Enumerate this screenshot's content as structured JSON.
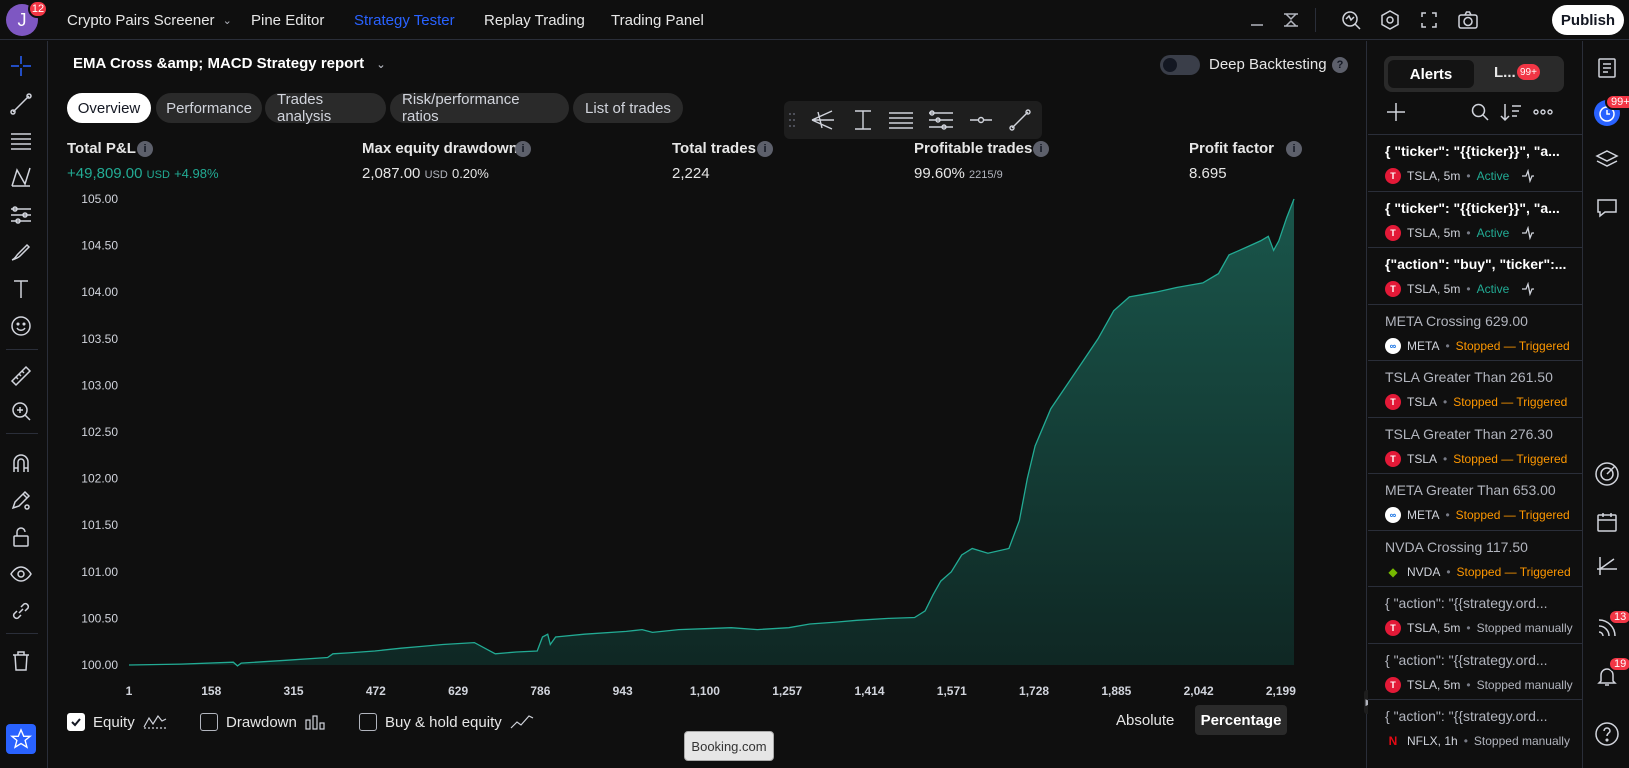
{
  "user": {
    "initial": "J",
    "notifications": "12"
  },
  "topnav": {
    "screener": "Crypto Pairs Screener",
    "pine_editor": "Pine Editor",
    "strategy_tester": "Strategy Tester",
    "replay_trading": "Replay Trading",
    "trading_panel": "Trading Panel",
    "publish": "Publish"
  },
  "report": {
    "title": "EMA Cross &amp; MACD Strategy report",
    "deep_backtesting": "Deep Backtesting",
    "deep_backtesting_enabled": false,
    "help": "?"
  },
  "tabs": [
    {
      "label": "Overview",
      "active": true
    },
    {
      "label": "Performance",
      "active": false
    },
    {
      "label": "Trades analysis",
      "active": false
    },
    {
      "label": "Risk/performance ratios",
      "active": false
    },
    {
      "label": "List of trades",
      "active": false
    }
  ],
  "metrics": {
    "total_pnl": {
      "label": "Total P&L",
      "value": "+49,809.00",
      "unit": "USD",
      "pct": "+4.98%"
    },
    "max_dd": {
      "label": "Max equity drawdown",
      "value": "2,087.00",
      "unit": "USD",
      "pct": "0.20%"
    },
    "total_trades": {
      "label": "Total trades",
      "value": "2,224"
    },
    "profitable": {
      "label": "Profitable trades",
      "value": "99.60%",
      "ratio": "2215/9"
    },
    "profit_factor": {
      "label": "Profit factor",
      "value": "8.695"
    }
  },
  "chart_data": {
    "type": "area",
    "ylim": [
      100,
      105
    ],
    "y_ticks": [
      "105.00",
      "104.50",
      "104.00",
      "103.50",
      "103.00",
      "102.50",
      "102.00",
      "101.50",
      "101.00",
      "100.50",
      "100.00"
    ],
    "x_ticks": [
      "1",
      "158",
      "315",
      "472",
      "629",
      "786",
      "943",
      "1,100",
      "1,257",
      "1,414",
      "1,571",
      "1,728",
      "1,885",
      "2,042",
      "2,199"
    ],
    "xlim": [
      1,
      2224
    ],
    "series": [
      {
        "name": "Equity",
        "color": "#22ab94",
        "points": [
          [
            1,
            100.0
          ],
          [
            100,
            100.01
          ],
          [
            200,
            100.03
          ],
          [
            208,
            99.99
          ],
          [
            215,
            100.02
          ],
          [
            300,
            100.05
          ],
          [
            380,
            100.08
          ],
          [
            390,
            100.12
          ],
          [
            420,
            100.13
          ],
          [
            470,
            100.15
          ],
          [
            520,
            100.18
          ],
          [
            560,
            100.2
          ],
          [
            600,
            100.22
          ],
          [
            660,
            100.24
          ],
          [
            700,
            100.12
          ],
          [
            740,
            100.14
          ],
          [
            780,
            100.15
          ],
          [
            790,
            100.3
          ],
          [
            800,
            100.33
          ],
          [
            805,
            100.22
          ],
          [
            815,
            100.3
          ],
          [
            870,
            100.33
          ],
          [
            950,
            100.36
          ],
          [
            980,
            100.38
          ],
          [
            1000,
            100.35
          ],
          [
            1050,
            100.38
          ],
          [
            1100,
            100.39
          ],
          [
            1150,
            100.4
          ],
          [
            1200,
            100.38
          ],
          [
            1260,
            100.4
          ],
          [
            1300,
            100.44
          ],
          [
            1350,
            100.46
          ],
          [
            1390,
            100.48
          ],
          [
            1450,
            100.5
          ],
          [
            1500,
            100.51
          ],
          [
            1520,
            100.58
          ],
          [
            1535,
            100.75
          ],
          [
            1550,
            100.9
          ],
          [
            1570,
            101.0
          ],
          [
            1590,
            101.18
          ],
          [
            1610,
            101.25
          ],
          [
            1640,
            101.2
          ],
          [
            1680,
            101.25
          ],
          [
            1700,
            101.55
          ],
          [
            1715,
            102.0
          ],
          [
            1730,
            102.35
          ],
          [
            1760,
            102.75
          ],
          [
            1790,
            103.0
          ],
          [
            1820,
            103.25
          ],
          [
            1850,
            103.5
          ],
          [
            1880,
            103.8
          ],
          [
            1910,
            103.95
          ],
          [
            1960,
            104.0
          ],
          [
            2000,
            104.05
          ],
          [
            2050,
            104.1
          ],
          [
            2080,
            104.2
          ],
          [
            2100,
            104.4
          ],
          [
            2120,
            104.45
          ],
          [
            2140,
            104.5
          ],
          [
            2160,
            104.55
          ],
          [
            2175,
            104.6
          ],
          [
            2185,
            104.45
          ],
          [
            2195,
            104.55
          ],
          [
            2210,
            104.8
          ],
          [
            2224,
            105.0
          ]
        ]
      }
    ],
    "legend": {
      "equity": "Equity",
      "equity_checked": true,
      "drawdown": "Drawdown",
      "drawdown_checked": false,
      "buyhold": "Buy & hold equity",
      "buyhold_checked": false
    },
    "scale": {
      "absolute": "Absolute",
      "percentage": "Percentage",
      "selected": "percentage"
    }
  },
  "booking": "Booking.com",
  "alerts": {
    "tab_alerts": "Alerts",
    "tab_log": "L...",
    "log_badge": "99+",
    "items": [
      {
        "title": "{ \"ticker\": \"{{ticker}}\", \"a...",
        "symbol": "TSLA, 5m",
        "status": "Active",
        "status_type": "active",
        "logo": "tsla",
        "bold": true
      },
      {
        "title": "{ \"ticker\": \"{{ticker}}\", \"a...",
        "symbol": "TSLA, 5m",
        "status": "Active",
        "status_type": "active",
        "logo": "tsla",
        "bold": true
      },
      {
        "title": "{\"action\": \"buy\", \"ticker\":...",
        "symbol": "TSLA, 5m",
        "status": "Active",
        "status_type": "active",
        "logo": "tsla",
        "bold": true
      },
      {
        "title": "META Crossing 629.00",
        "symbol": "META",
        "status": "Stopped — Triggered",
        "status_type": "triggered",
        "logo": "meta",
        "bold": false
      },
      {
        "title": "TSLA Greater Than 261.50",
        "symbol": "TSLA",
        "status": "Stopped — Triggered",
        "status_type": "triggered",
        "logo": "tsla",
        "bold": false
      },
      {
        "title": "TSLA Greater Than 276.30",
        "symbol": "TSLA",
        "status": "Stopped — Triggered",
        "status_type": "triggered",
        "logo": "tsla",
        "bold": false
      },
      {
        "title": "META Greater Than 653.00",
        "symbol": "META",
        "status": "Stopped — Triggered",
        "status_type": "triggered",
        "logo": "meta",
        "bold": false
      },
      {
        "title": "NVDA Crossing 117.50",
        "symbol": "NVDA",
        "status": "Stopped — Triggered",
        "status_type": "triggered",
        "logo": "nvda",
        "bold": false
      },
      {
        "title": "{ \"action\": \"{{strategy.ord...",
        "symbol": "TSLA, 5m",
        "status": "Stopped manually",
        "status_type": "stopped",
        "logo": "tsla",
        "bold": false
      },
      {
        "title": "{ \"action\": \"{{strategy.ord...",
        "symbol": "TSLA, 5m",
        "status": "Stopped manually",
        "status_type": "stopped",
        "logo": "tsla",
        "bold": false
      },
      {
        "title": "{ \"action\": \"{{strategy.ord...",
        "symbol": "NFLX, 1h",
        "status": "Stopped manually",
        "status_type": "stopped",
        "logo": "nflx",
        "bold": false
      }
    ]
  },
  "right_badges": {
    "alerts": "99+",
    "streams": "13",
    "notifications": "19"
  }
}
